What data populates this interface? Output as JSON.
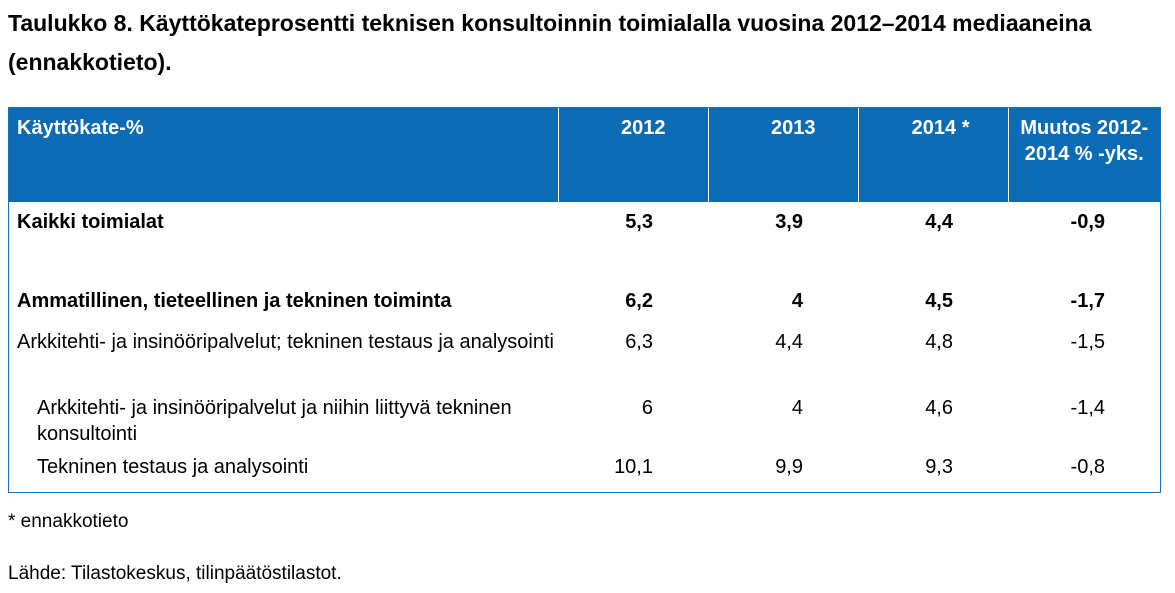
{
  "title": "Taulukko 8. Käyttökateprosentti teknisen konsultoinnin toimialalla vuosina 2012–2014 mediaaneina (ennakkotieto).",
  "table": {
    "headers": [
      "Käyttökate-%",
      "2012",
      "2013",
      "2014 *",
      "Muutos 2012-2014 % -yks."
    ],
    "rows": [
      {
        "label": "Kaikki toimialat",
        "v2012": "5,3",
        "v2013": "3,9",
        "v2014": "4,4",
        "change": "-0,9"
      },
      {
        "label": "Ammatillinen, tieteellinen ja tekninen toiminta",
        "v2012": "6,2",
        "v2013": "4",
        "v2014": "4,5",
        "change": "-1,7"
      },
      {
        "label": "Arkkitehti- ja insinööripalvelut; tekninen testaus ja analysointi",
        "v2012": "6,3",
        "v2013": "4,4",
        "v2014": "4,8",
        "change": "-1,5"
      },
      {
        "label": "Arkkitehti- ja insinööripalvelut ja niihin liittyvä tekninen konsultointi",
        "v2012": "6",
        "v2013": "4",
        "v2014": "4,6",
        "change": "-1,4"
      },
      {
        "label": "Tekninen testaus ja analysointi",
        "v2012": "10,1",
        "v2013": "9,9",
        "v2014": "9,3",
        "change": "-0,8"
      }
    ]
  },
  "footnote": "* ennakkotieto",
  "source": "Lähde: Tilastokeskus, tilinpäätöstilastot.",
  "colors": {
    "header_bg": "#0b6cb5",
    "header_text": "#ffffff"
  }
}
